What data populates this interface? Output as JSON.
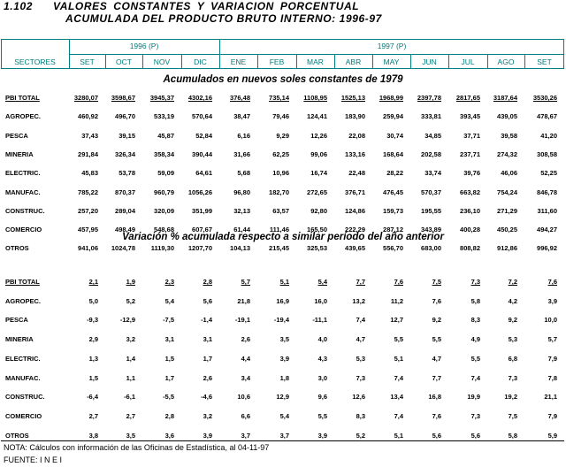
{
  "title": {
    "number": "1.102",
    "line1": "VALORES  CONSTANTES  Y  VARIACION   PORCENTUAL",
    "line2": "ACUMULADA DEL PRODUCTO BRUTO INTERNO: 1996-97"
  },
  "header": {
    "sector_label": "SECTORES",
    "groups": [
      {
        "label": "1996 (P)",
        "months": [
          "SET",
          "OCT",
          "NOV",
          "DIC"
        ]
      },
      {
        "label": "1997 (P)",
        "months": [
          "ENE",
          "FEB",
          "MAR",
          "ABR",
          "MAY",
          "JUN",
          "JUL",
          "AGO",
          "SET"
        ]
      }
    ]
  },
  "sections": [
    {
      "title": "Acumulados en nuevos soles constantes de 1979",
      "rows": [
        {
          "sector": "PBI TOTAL",
          "values": [
            "3280,07",
            "3598,67",
            "3945,37",
            "4302,16",
            "376,48",
            "735,14",
            "1108,95",
            "1525,13",
            "1968,99",
            "2397,78",
            "2817,65",
            "3187,64",
            "3530,26"
          ]
        },
        {
          "sector": "AGROPEC.",
          "values": [
            "460,92",
            "496,70",
            "533,19",
            "570,64",
            "38,47",
            "79,46",
            "124,41",
            "183,90",
            "259,94",
            "333,81",
            "393,45",
            "439,05",
            "478,67"
          ]
        },
        {
          "sector": "PESCA",
          "values": [
            "37,43",
            "39,15",
            "45,87",
            "52,84",
            "6,16",
            "9,29",
            "12,26",
            "22,08",
            "30,74",
            "34,85",
            "37,71",
            "39,58",
            "41,20"
          ]
        },
        {
          "sector": "MINERIA",
          "values": [
            "291,84",
            "326,34",
            "358,34",
            "390,44",
            "31,66",
            "62,25",
            "99,06",
            "133,16",
            "168,64",
            "202,58",
            "237,71",
            "274,32",
            "308,58"
          ]
        },
        {
          "sector": "ELECTRIC.",
          "values": [
            "45,83",
            "53,78",
            "59,09",
            "64,61",
            "5,68",
            "10,96",
            "16,74",
            "22,48",
            "28,22",
            "33,74",
            "39,76",
            "46,06",
            "52,25"
          ]
        },
        {
          "sector": "MANUFAC.",
          "values": [
            "785,22",
            "870,37",
            "960,79",
            "1056,26",
            "96,80",
            "182,70",
            "272,65",
            "376,71",
            "476,45",
            "570,37",
            "663,82",
            "754,24",
            "846,78"
          ]
        },
        {
          "sector": "CONSTRUC.",
          "values": [
            "257,20",
            "289,04",
            "320,09",
            "351,99",
            "32,13",
            "63,57",
            "92,80",
            "124,86",
            "159,73",
            "195,55",
            "236,10",
            "271,29",
            "311,60"
          ]
        },
        {
          "sector": "COMERCIO",
          "values": [
            "457,95",
            "498,49",
            "548,68",
            "607,67",
            "61,44",
            "111,46",
            "165,50",
            "222,29",
            "287,12",
            "343,89",
            "400,28",
            "450,25",
            "494,27"
          ]
        },
        {
          "sector": "OTROS",
          "values": [
            "941,06",
            "1024,78",
            "1119,30",
            "1207,70",
            "104,13",
            "215,45",
            "325,53",
            "439,65",
            "556,70",
            "683,00",
            "808,82",
            "912,86",
            "996,92"
          ]
        }
      ]
    },
    {
      "title": "Variación % acumulada respecto a similar período del año anterior",
      "rows": [
        {
          "sector": "PBI TOTAL",
          "values": [
            "2,1",
            "1,9",
            "2,3",
            "2,8",
            "5,7",
            "5,1",
            "5,4",
            "7,7",
            "7,6",
            "7,5",
            "7,3",
            "7,2",
            "7,6"
          ]
        },
        {
          "sector": "AGROPEC.",
          "values": [
            "5,0",
            "5,2",
            "5,4",
            "5,6",
            "21,8",
            "16,9",
            "16,0",
            "13,2",
            "11,2",
            "7,6",
            "5,8",
            "4,2",
            "3,9"
          ]
        },
        {
          "sector": "PESCA",
          "values": [
            "-9,3",
            "-12,9",
            "-7,5",
            "-1,4",
            "-19,1",
            "-19,4",
            "-11,1",
            "7,4",
            "12,7",
            "9,2",
            "8,3",
            "9,2",
            "10,0"
          ]
        },
        {
          "sector": "MINERIA",
          "values": [
            "2,9",
            "3,2",
            "3,1",
            "3,1",
            "2,6",
            "3,5",
            "4,0",
            "4,7",
            "5,5",
            "5,5",
            "4,9",
            "5,3",
            "5,7"
          ]
        },
        {
          "sector": "ELECTRIC.",
          "values": [
            "1,3",
            "1,4",
            "1,5",
            "1,7",
            "4,4",
            "3,9",
            "4,3",
            "5,3",
            "5,1",
            "4,7",
            "5,5",
            "6,8",
            "7,9"
          ]
        },
        {
          "sector": "MANUFAC.",
          "values": [
            "1,5",
            "1,1",
            "1,7",
            "2,6",
            "3,4",
            "1,8",
            "3,0",
            "7,3",
            "7,4",
            "7,7",
            "7,4",
            "7,3",
            "7,8"
          ]
        },
        {
          "sector": "CONSTRUC.",
          "values": [
            "-6,4",
            "-6,1",
            "-5,5",
            "-4,6",
            "10,6",
            "12,9",
            "9,6",
            "12,6",
            "13,4",
            "16,8",
            "19,9",
            "19,2",
            "21,1"
          ]
        },
        {
          "sector": "COMERCIO",
          "values": [
            "2,7",
            "2,7",
            "2,8",
            "3,2",
            "6,6",
            "5,4",
            "5,5",
            "8,3",
            "7,4",
            "7,6",
            "7,3",
            "7,5",
            "7,9"
          ]
        },
        {
          "sector": "OTROS",
          "values": [
            "3,8",
            "3,5",
            "3,6",
            "3,9",
            "3,7",
            "3,7",
            "3,9",
            "5,2",
            "5,1",
            "5,6",
            "5,6",
            "5,8",
            "5,9"
          ]
        }
      ]
    }
  ],
  "notes": [
    "NOTA: Cálculos con información de las Oficinas de Estadística, al 04-11-97",
    "FUENTE: I N E I"
  ]
}
